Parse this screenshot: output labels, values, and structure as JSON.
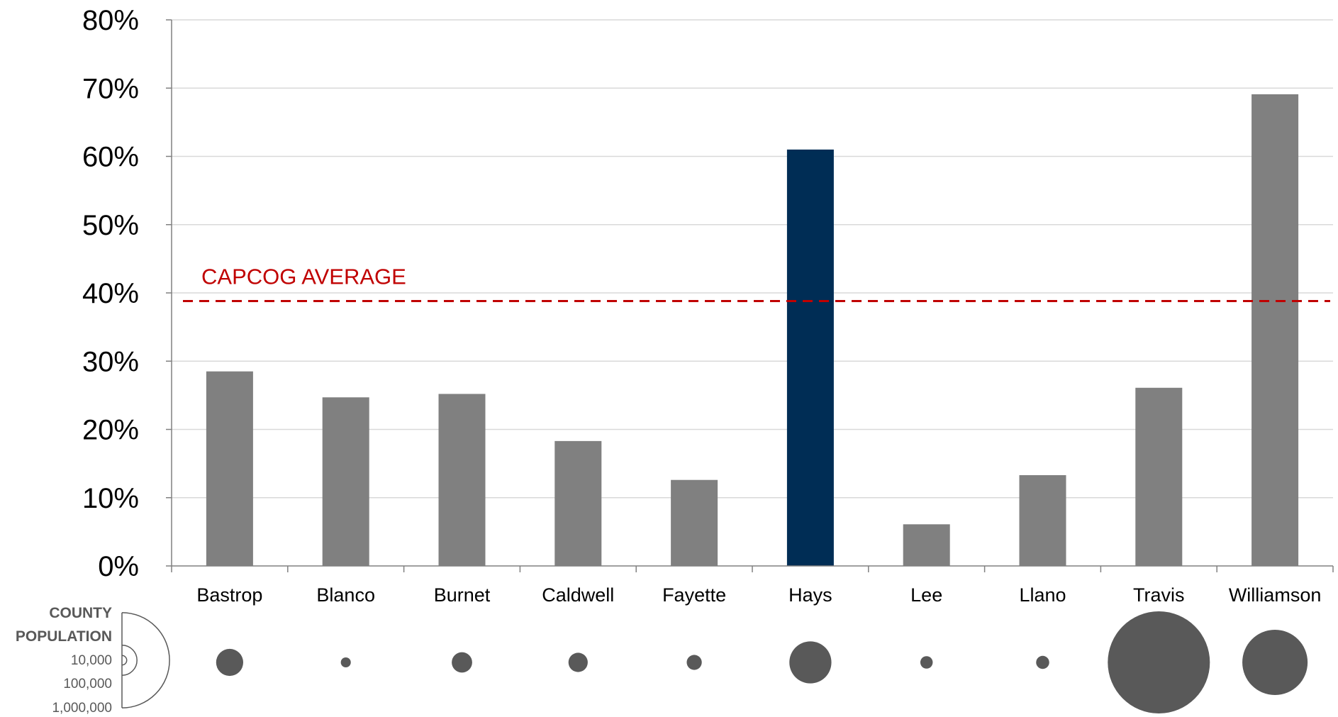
{
  "chart_data": {
    "type": "bar",
    "categories": [
      "Bastrop",
      "Blanco",
      "Burnet",
      "Caldwell",
      "Fayette",
      "Hays",
      "Lee",
      "Llano",
      "Travis",
      "Williamson"
    ],
    "values": [
      28.5,
      24.7,
      25.2,
      18.3,
      12.6,
      61.0,
      6.1,
      13.3,
      26.1,
      69.1
    ],
    "highlight_category": "Hays",
    "ylim": [
      0,
      80
    ],
    "yticks": [
      0,
      10,
      20,
      30,
      40,
      50,
      60,
      70,
      80
    ],
    "ytick_labels": [
      "0%",
      "10%",
      "20%",
      "30%",
      "40%",
      "50%",
      "60%",
      "70%",
      "80%"
    ],
    "grid": true,
    "reference_line": {
      "label": "CAPCOG AVERAGE",
      "value": 38.8,
      "style": "dashed"
    },
    "population_bubbles": {
      "legend_title": [
        "COUNTY",
        "POPULATION"
      ],
      "legend_values": [
        "10,000",
        "100,000",
        "1,000,000"
      ],
      "legend_scale": [
        10000,
        100000,
        1000000
      ],
      "values": [
        81000,
        11000,
        46000,
        41000,
        25000,
        195000,
        17000,
        19000,
        1150000,
        470000
      ]
    },
    "colors": {
      "bar": "#808080",
      "highlight": "#002D55",
      "reference_line": "#C00000",
      "bubble": "#595959",
      "grid": "#D9D9D9",
      "axis": "#808080"
    }
  }
}
